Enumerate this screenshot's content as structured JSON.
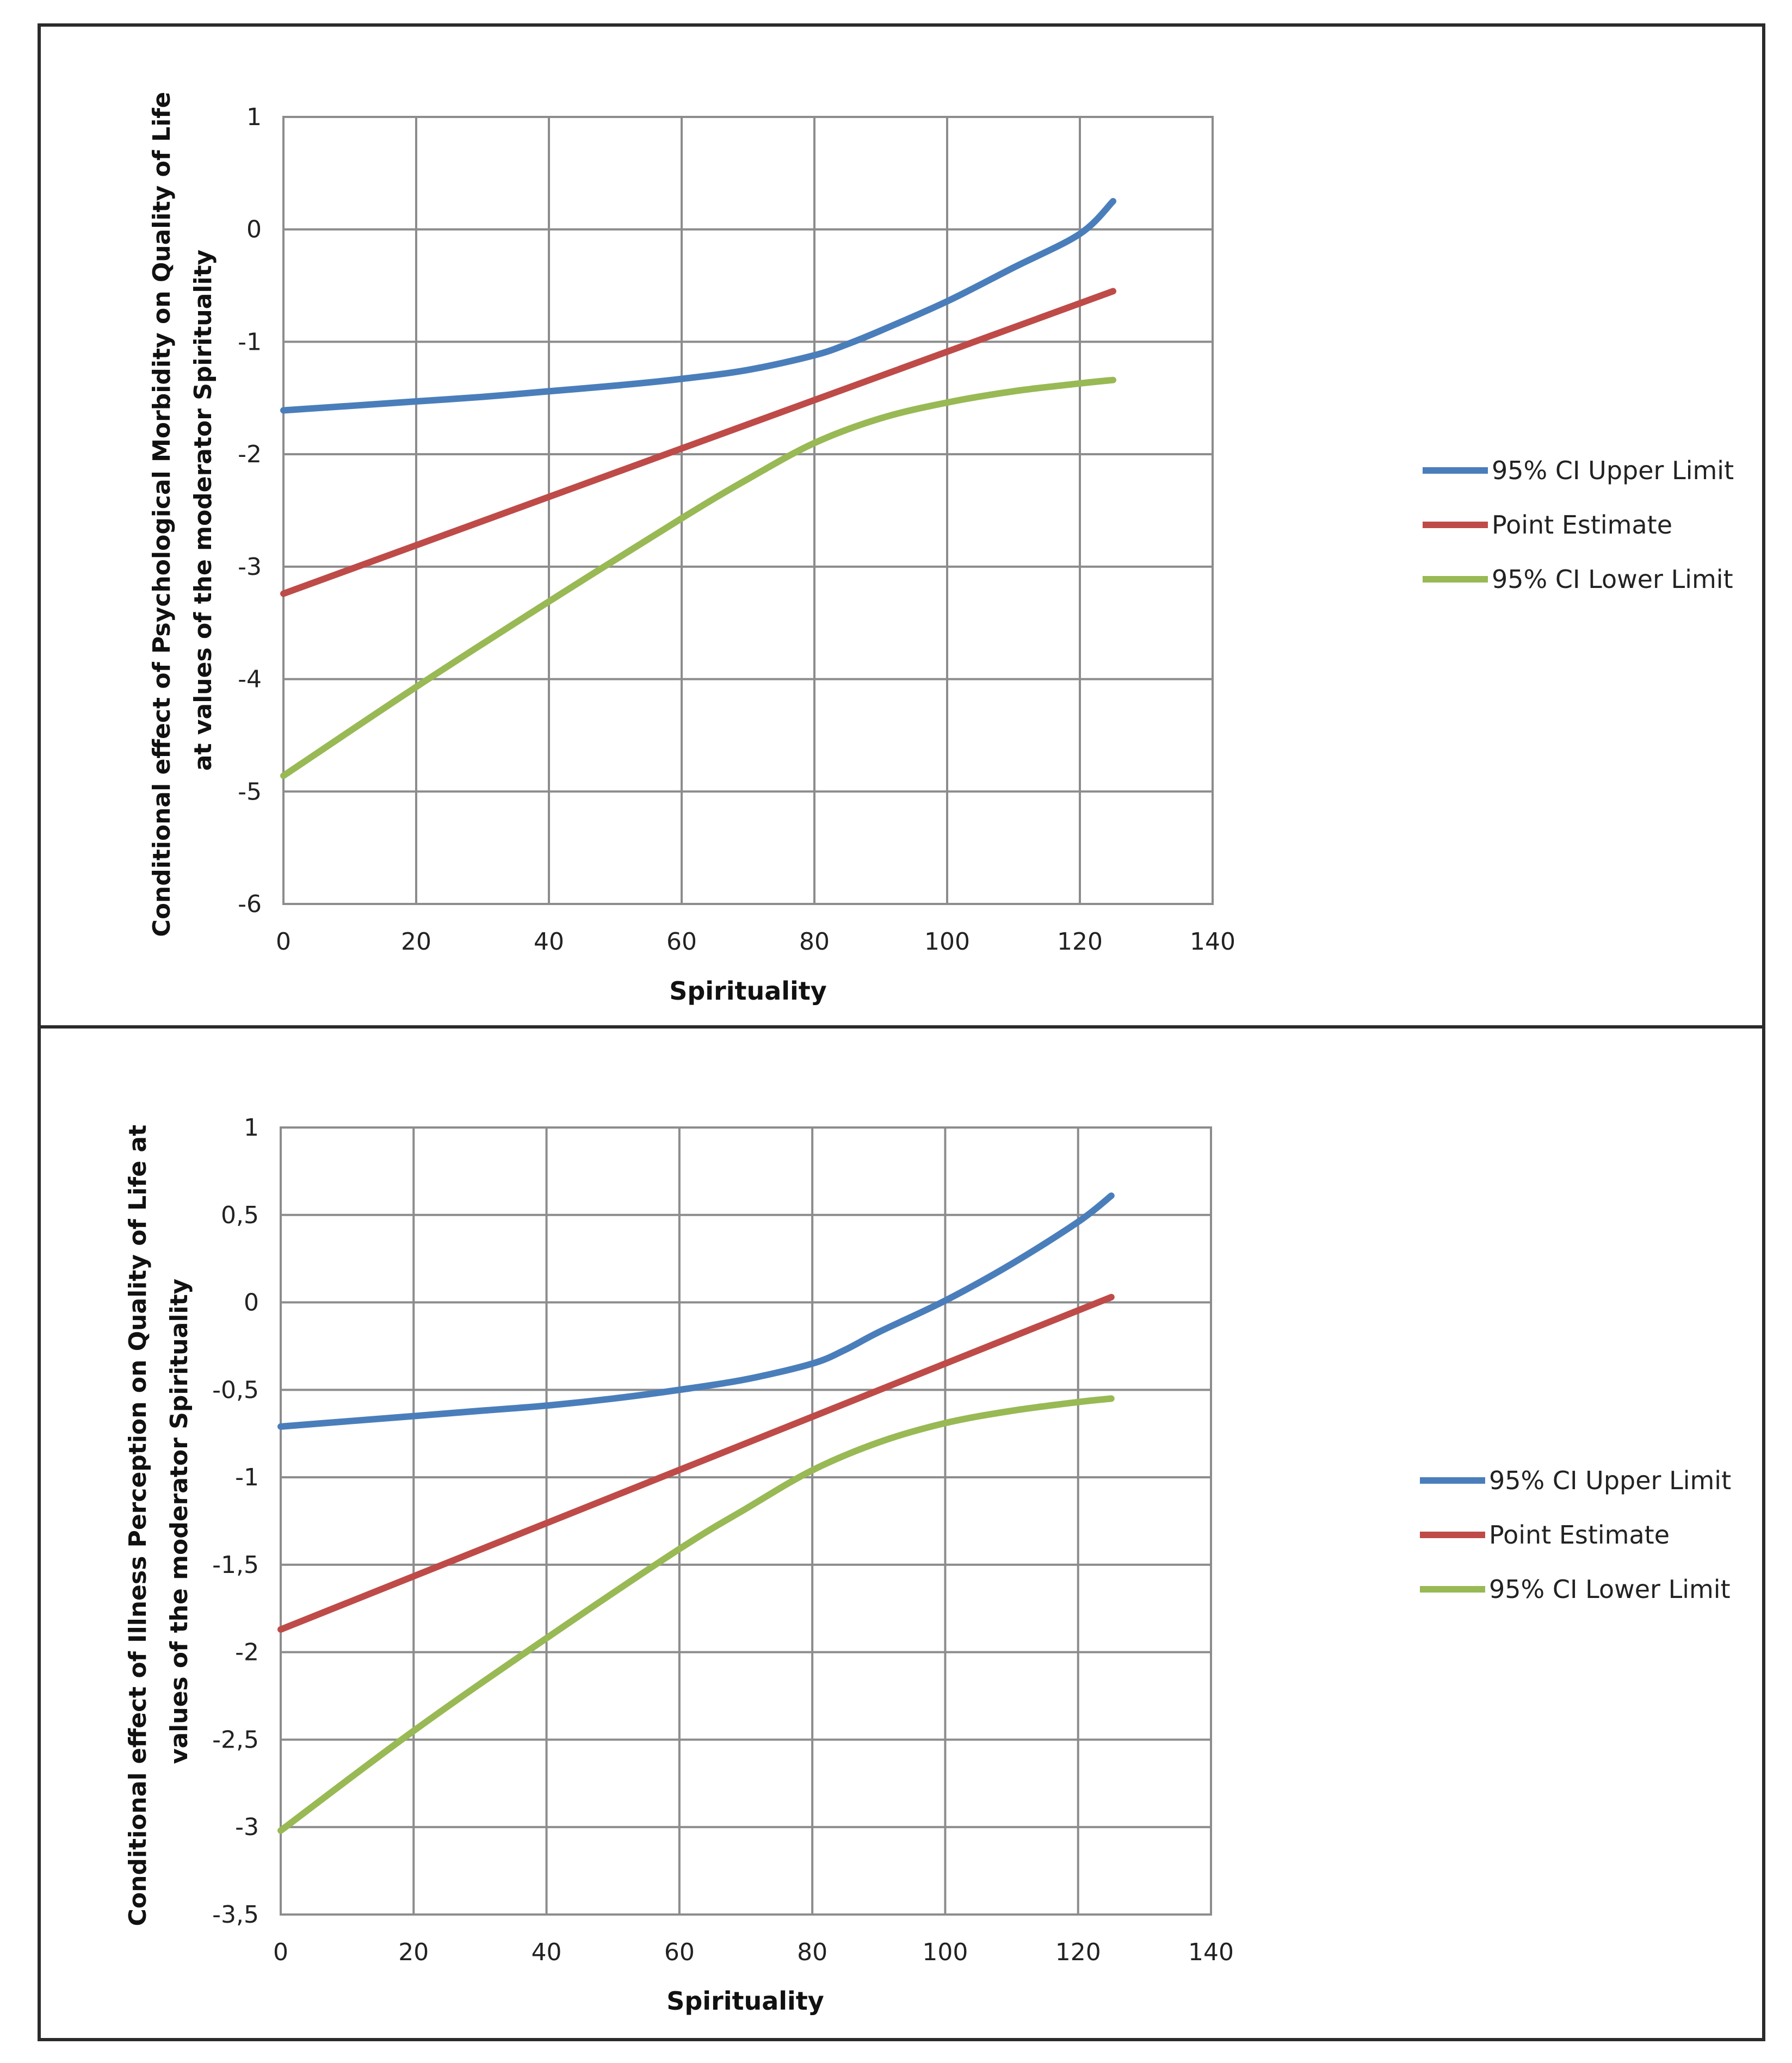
{
  "chart_data": [
    {
      "type": "line",
      "title": "",
      "xlabel": "Spirituality",
      "ylabel_lines": [
        "Conditional  effect of Psychological Morbidity on Quality of Life",
        "at values of the moderator Spirituality"
      ],
      "xlim": [
        0,
        140
      ],
      "ylim": [
        -6,
        1
      ],
      "xticks": [
        0,
        20,
        40,
        60,
        80,
        100,
        120,
        140
      ],
      "xtick_labels": [
        "0",
        "20",
        "40",
        "60",
        "80",
        "100",
        "120",
        "140"
      ],
      "yticks": [
        1,
        0,
        -1,
        -2,
        -3,
        -4,
        -5,
        -6
      ],
      "ytick_labels": [
        "1",
        "0",
        "-1",
        "-2",
        "-3",
        "-4",
        "-5",
        "-6"
      ],
      "grid": true,
      "legend_position": "right",
      "series": [
        {
          "name": "95% CI Upper Limit",
          "color": "#4a7ebb",
          "x": [
            0,
            10,
            20,
            30,
            40,
            50,
            60,
            70,
            80,
            85,
            90,
            100,
            110,
            120,
            125
          ],
          "y": [
            -1.61,
            -1.57,
            -1.53,
            -1.49,
            -1.44,
            -1.39,
            -1.33,
            -1.25,
            -1.12,
            -1.02,
            -0.9,
            -0.64,
            -0.34,
            -0.04,
            0.25
          ]
        },
        {
          "name": "Point Estimate",
          "color": "#be4b48",
          "x": [
            0,
            125
          ],
          "y": [
            -3.24,
            -0.55
          ]
        },
        {
          "name": "95% CI Lower Limit",
          "color": "#98b954",
          "x": [
            0,
            20,
            40,
            60,
            70,
            80,
            90,
            100,
            110,
            120,
            125
          ],
          "y": [
            -4.86,
            -4.07,
            -3.31,
            -2.57,
            -2.22,
            -1.9,
            -1.68,
            -1.54,
            -1.44,
            -1.37,
            -1.34
          ]
        }
      ]
    },
    {
      "type": "line",
      "title": "",
      "xlabel": "Spirituality",
      "ylabel_lines": [
        "Conditional  effect of Illness Perception on Quality of Life at",
        "values of the moderator Spirituality"
      ],
      "xlim": [
        0,
        140
      ],
      "ylim": [
        -3.5,
        1
      ],
      "xticks": [
        0,
        20,
        40,
        60,
        80,
        100,
        120,
        140
      ],
      "xtick_labels": [
        "0",
        "20",
        "40",
        "60",
        "80",
        "100",
        "120",
        "140"
      ],
      "yticks": [
        1,
        0.5,
        0,
        -0.5,
        -1,
        -1.5,
        -2,
        -2.5,
        -3,
        -3.5
      ],
      "ytick_labels": [
        "1",
        "0,5",
        "0",
        "-0,5",
        "-1",
        "-1,5",
        "-2",
        "-2,5",
        "-3",
        "-3,5"
      ],
      "grid": true,
      "legend_position": "right",
      "series": [
        {
          "name": "95% CI Upper Limit",
          "color": "#4a7ebb",
          "x": [
            0,
            10,
            20,
            30,
            40,
            50,
            60,
            70,
            80,
            85,
            90,
            100,
            110,
            120,
            125
          ],
          "y": [
            -0.71,
            -0.68,
            -0.65,
            -0.62,
            -0.59,
            -0.55,
            -0.5,
            -0.44,
            -0.35,
            -0.27,
            -0.17,
            0.01,
            0.22,
            0.46,
            0.61
          ]
        },
        {
          "name": "Point Estimate",
          "color": "#be4b48",
          "x": [
            0,
            125
          ],
          "y": [
            -1.87,
            0.03
          ]
        },
        {
          "name": "95% CI Lower Limit",
          "color": "#98b954",
          "x": [
            0,
            20,
            40,
            60,
            70,
            80,
            90,
            100,
            110,
            120,
            125
          ],
          "y": [
            -3.02,
            -2.45,
            -1.92,
            -1.41,
            -1.18,
            -0.96,
            -0.8,
            -0.69,
            -0.62,
            -0.57,
            -0.55
          ]
        }
      ]
    }
  ]
}
